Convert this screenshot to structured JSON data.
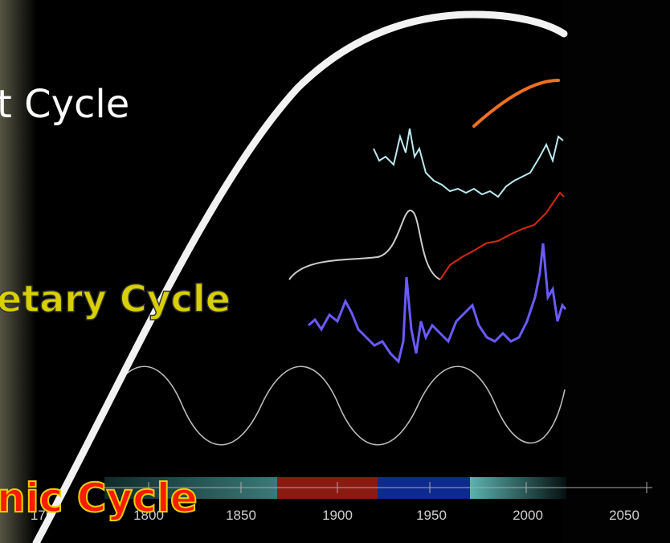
{
  "slide": {
    "headings": [
      "t Cycle",
      "etary Cycle",
      "nic Cycle"
    ]
  },
  "timeline": {
    "tick_labels": [
      "175",
      "1800",
      "1850",
      "1900",
      "1950",
      "2000",
      "2050"
    ]
  }
}
